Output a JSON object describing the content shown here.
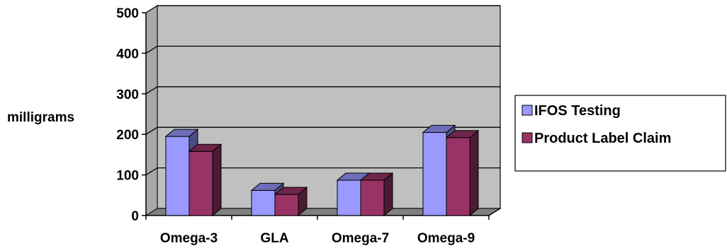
{
  "chart_data": {
    "type": "bar",
    "categories": [
      "Omega-3",
      "GLA",
      "Omega-7",
      "Omega-9"
    ],
    "series": [
      {
        "name": "IFOS Testing",
        "values": [
          195,
          62,
          87,
          205
        ],
        "color": "#9999ff"
      },
      {
        "name": "Product Label Claim",
        "values": [
          158,
          52,
          87,
          192
        ],
        "color": "#993366"
      }
    ],
    "ylabel": "milligrams",
    "xlabel": "",
    "ylim": [
      0,
      500
    ],
    "yticks": [
      0,
      100,
      200,
      300,
      400,
      500
    ],
    "grid": true,
    "legend_position": "right",
    "plot_background": "#c0c0c0",
    "three_d": true
  }
}
